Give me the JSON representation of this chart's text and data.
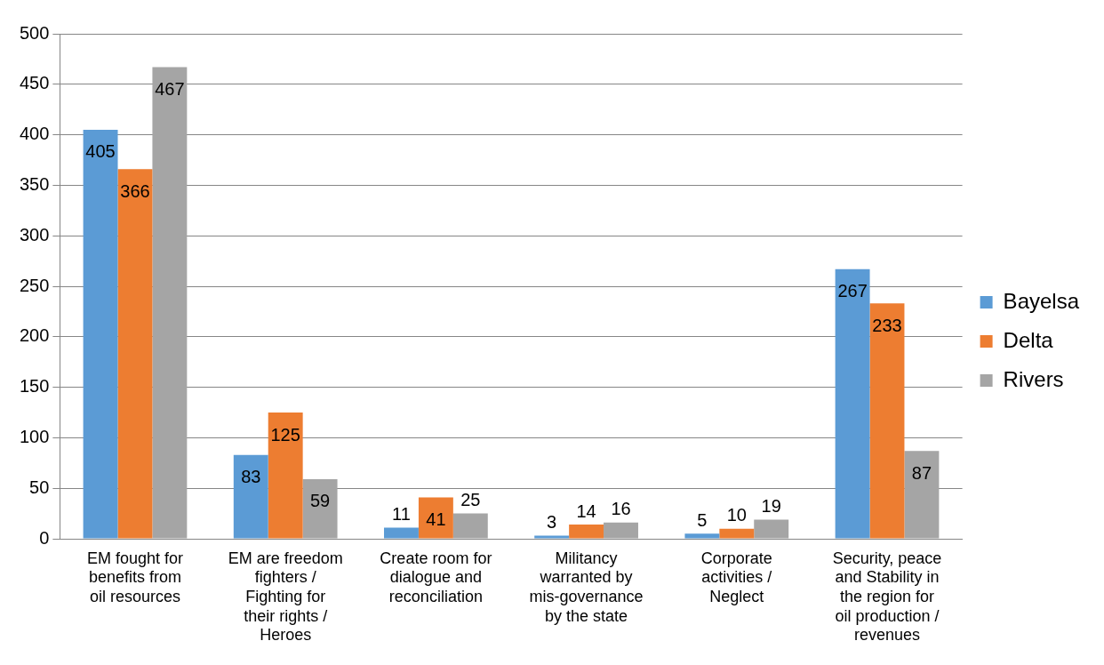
{
  "chart_data": {
    "type": "bar",
    "categories": [
      "EM fought for benefits from oil resources",
      "EM are freedom fighters / Fighting for their rights / Heroes",
      "Create room for dialogue and reconciliation",
      "Militancy warranted by mis-governance by the state",
      "Corporate activities / Neglect",
      "Security, peace and Stability in the region for oil production / revenues"
    ],
    "series": [
      {
        "name": "Bayelsa",
        "color": "#5b9bd5",
        "values": [
          405,
          83,
          11,
          3,
          5,
          267
        ]
      },
      {
        "name": "Delta",
        "color": "#ed7d31",
        "values": [
          366,
          125,
          41,
          14,
          10,
          233
        ]
      },
      {
        "name": "Rivers",
        "color": "#a5a5a5",
        "values": [
          467,
          59,
          25,
          16,
          19,
          87
        ]
      }
    ],
    "ylim": [
      0,
      500
    ],
    "yticks": [
      0,
      50,
      100,
      150,
      200,
      250,
      300,
      350,
      400,
      450,
      500
    ],
    "grid": "y",
    "legend": "right",
    "data_labels": true
  }
}
